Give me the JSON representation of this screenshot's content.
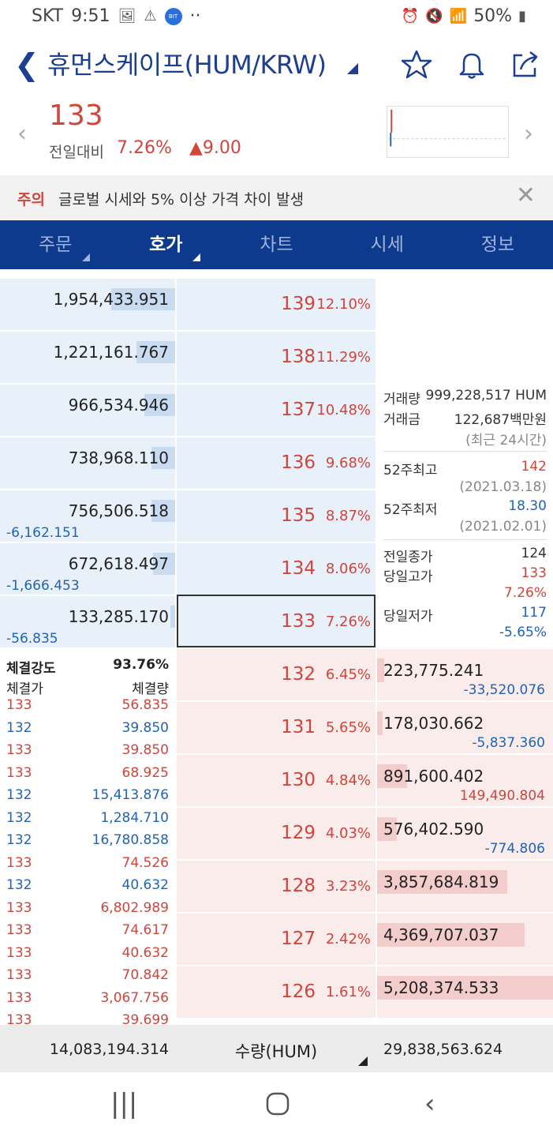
{
  "status_bar": {
    "carrier": "SKT",
    "time": "9:51",
    "dots": "··",
    "battery": "50%",
    "badge": "BIT PUSH"
  },
  "header": {
    "title": "휴먼스케이프(HUM/KRW)"
  },
  "price": {
    "current": "133",
    "prev_label": "전일대비",
    "change_pct": "7.26%",
    "change_amt": "▲9.00"
  },
  "notice": {
    "tag": "주의",
    "message": "글로벌 시세와 5% 이상 가격 차이 발생"
  },
  "tabs": [
    {
      "label": "주문"
    },
    {
      "label": "호가"
    },
    {
      "label": "차트"
    },
    {
      "label": "시세"
    },
    {
      "label": "정보"
    }
  ],
  "asks": [
    {
      "qty": "1,954,433.951",
      "price": "139",
      "pct": "12.10%",
      "sub": "",
      "fill": 0.38
    },
    {
      "qty": "1,221,161.767",
      "price": "138",
      "pct": "11.29%",
      "sub": "",
      "fill": 0.23
    },
    {
      "qty": "966,534.946",
      "price": "137",
      "pct": "10.48%",
      "sub": "",
      "fill": 0.18
    },
    {
      "qty": "738,968.110",
      "price": "136",
      "pct": "9.68%",
      "sub": "",
      "fill": 0.14
    },
    {
      "qty": "756,506.518",
      "price": "135",
      "pct": "8.87%",
      "sub": "-6,162.151",
      "fill": 0.14
    },
    {
      "qty": "672,618.497",
      "price": "134",
      "pct": "8.06%",
      "sub": "-1,666.453",
      "fill": 0.13
    },
    {
      "qty": "133,285.170",
      "price": "133",
      "pct": "7.26%",
      "sub": "-56.835",
      "fill": 0.03
    }
  ],
  "bids": [
    {
      "price": "132",
      "pct": "6.45%",
      "qty": "223,775.241",
      "sub": "-33,520.076",
      "sub_color": "blue",
      "fill": 0.04
    },
    {
      "price": "131",
      "pct": "5.65%",
      "qty": "178,030.662",
      "sub": "-5,837.360",
      "sub_color": "blue",
      "fill": 0.03
    },
    {
      "price": "130",
      "pct": "4.84%",
      "qty": "891,600.402",
      "sub": "149,490.804",
      "sub_color": "red",
      "fill": 0.17
    },
    {
      "price": "129",
      "pct": "4.03%",
      "qty": "576,402.590",
      "sub": "-774.806",
      "sub_color": "blue",
      "fill": 0.11
    },
    {
      "price": "128",
      "pct": "3.23%",
      "qty": "3,857,684.819",
      "sub": "",
      "sub_color": "blue",
      "fill": 0.74
    },
    {
      "price": "127",
      "pct": "2.42%",
      "qty": "4,369,707.037",
      "sub": "",
      "sub_color": "blue",
      "fill": 0.84
    },
    {
      "price": "126",
      "pct": "1.61%",
      "qty": "5,208,374.533",
      "sub": "",
      "sub_color": "blue",
      "fill": 1.0
    }
  ],
  "info": {
    "volume_label": "거래량",
    "volume": "999,228,517 HUM",
    "amount_label": "거래금",
    "amount": "122,687백만원",
    "period": "(최근 24시간)",
    "high52_label": "52주최고",
    "high52": "142",
    "high52_date": "(2021.03.18)",
    "low52_label": "52주최저",
    "low52": "18.30",
    "low52_date": "(2021.02.01)",
    "prev_close_label": "전일종가",
    "prev_close": "124",
    "day_high_label": "당일고가",
    "day_high": "133",
    "day_high_pct": "7.26%",
    "day_low_label": "당일저가",
    "day_low": "117",
    "day_low_pct": "-5.65%"
  },
  "trades": {
    "strength_label": "체결강도",
    "strength": "93.76%",
    "price_header": "체결가",
    "qty_header": "체결량",
    "rows": [
      {
        "price": "133",
        "qty": "56.835",
        "color": "red"
      },
      {
        "price": "132",
        "qty": "39.850",
        "color": "blue"
      },
      {
        "price": "133",
        "qty": "39.850",
        "color": "red"
      },
      {
        "price": "133",
        "qty": "68.925",
        "color": "red"
      },
      {
        "price": "132",
        "qty": "15,413.876",
        "color": "blue"
      },
      {
        "price": "132",
        "qty": "1,284.710",
        "color": "blue"
      },
      {
        "price": "132",
        "qty": "16,780.858",
        "color": "blue"
      },
      {
        "price": "133",
        "qty": "74.526",
        "color": "red"
      },
      {
        "price": "132",
        "qty": "40.632",
        "color": "blue"
      },
      {
        "price": "133",
        "qty": "6,802.989",
        "color": "red"
      },
      {
        "price": "133",
        "qty": "74.617",
        "color": "red"
      },
      {
        "price": "133",
        "qty": "40.632",
        "color": "red"
      },
      {
        "price": "133",
        "qty": "70.842",
        "color": "red"
      },
      {
        "price": "133",
        "qty": "3,067.756",
        "color": "red"
      },
      {
        "price": "133",
        "qty": "39.699",
        "color": "red"
      }
    ]
  },
  "footer": {
    "total_ask": "14,083,194.314",
    "unit_selector": "수량(HUM)",
    "total_bid": "29,838,563.624"
  },
  "colors": {
    "brand": "#0d3a8c",
    "up": "#d0453c",
    "down": "#2163b5",
    "ask_bg": "#e8f0fa",
    "bid_bg": "#fbecec"
  }
}
